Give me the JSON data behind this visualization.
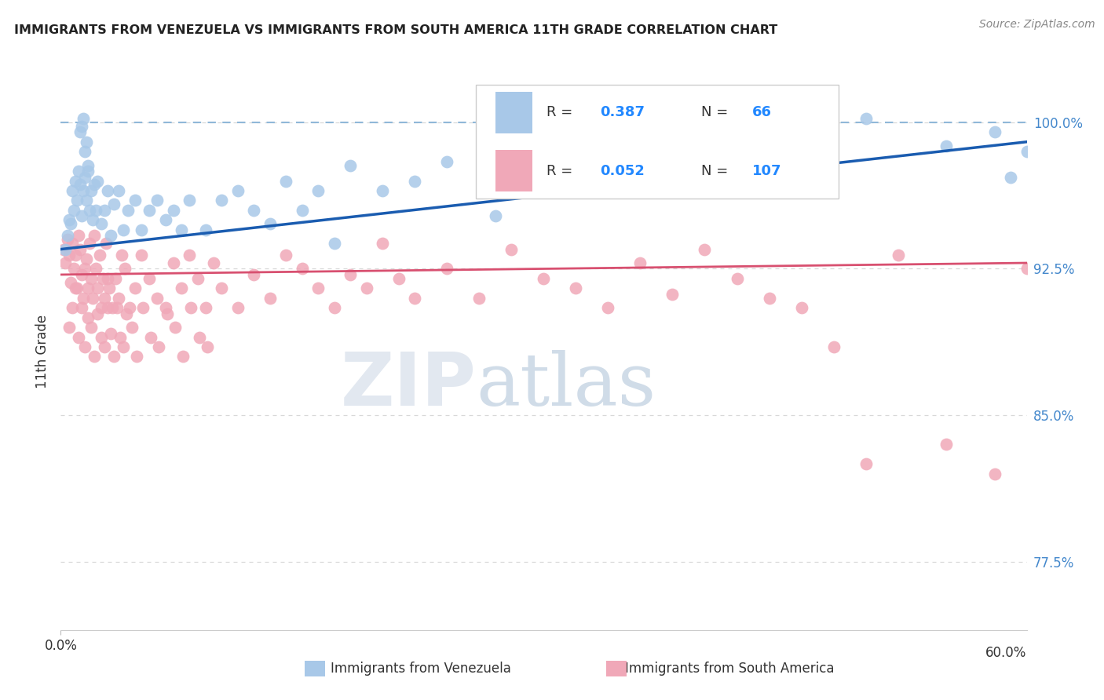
{
  "title": "IMMIGRANTS FROM VENEZUELA VS IMMIGRANTS FROM SOUTH AMERICA 11TH GRADE CORRELATION CHART",
  "source": "Source: ZipAtlas.com",
  "ylabel": "11th Grade",
  "xlim": [
    0.0,
    60.0
  ],
  "ylim": [
    74.0,
    102.5
  ],
  "yticks": [
    77.5,
    85.0,
    92.5,
    100.0
  ],
  "ytick_labels": [
    "77.5%",
    "85.0%",
    "92.5%",
    "100.0%"
  ],
  "blue_color": "#a8c8e8",
  "pink_color": "#f0a8b8",
  "blue_line_color": "#1a5cb0",
  "pink_line_color": "#d85070",
  "dashed_color": "#90b8d8",
  "blue_scatter_x": [
    0.3,
    0.4,
    0.5,
    0.6,
    0.7,
    0.8,
    0.9,
    1.0,
    1.1,
    1.2,
    1.3,
    1.4,
    1.5,
    1.6,
    1.7,
    1.8,
    1.9,
    2.0,
    2.1,
    2.2,
    2.3,
    2.5,
    2.7,
    2.9,
    3.1,
    3.3,
    3.6,
    3.9,
    4.2,
    4.6,
    5.0,
    5.5,
    6.0,
    6.5,
    7.0,
    7.5,
    8.0,
    9.0,
    10.0,
    11.0,
    12.0,
    13.0,
    14.0,
    15.0,
    16.0,
    17.0,
    18.0,
    20.0,
    22.0,
    24.0,
    27.0,
    30.0,
    35.0,
    40.0,
    45.0,
    50.0,
    55.0,
    58.0,
    59.0,
    60.0,
    1.2,
    1.3,
    1.4,
    1.5,
    1.6,
    1.7
  ],
  "blue_scatter_y": [
    93.5,
    94.2,
    95.0,
    94.8,
    96.5,
    95.5,
    97.0,
    96.0,
    97.5,
    96.8,
    95.2,
    96.5,
    97.2,
    96.0,
    97.8,
    95.5,
    96.5,
    95.0,
    96.8,
    95.5,
    97.0,
    94.8,
    95.5,
    96.5,
    94.2,
    95.8,
    96.5,
    94.5,
    95.5,
    96.0,
    94.5,
    95.5,
    96.0,
    95.0,
    95.5,
    94.5,
    96.0,
    94.5,
    96.0,
    96.5,
    95.5,
    94.8,
    97.0,
    95.5,
    96.5,
    93.8,
    97.8,
    96.5,
    97.0,
    98.0,
    95.2,
    97.8,
    99.2,
    99.0,
    97.2,
    100.2,
    98.8,
    99.5,
    97.2,
    98.5,
    99.5,
    99.8,
    100.2,
    98.5,
    99.0,
    97.5
  ],
  "pink_scatter_x": [
    0.2,
    0.3,
    0.4,
    0.5,
    0.6,
    0.7,
    0.8,
    0.9,
    1.0,
    1.1,
    1.2,
    1.3,
    1.4,
    1.5,
    1.6,
    1.7,
    1.8,
    1.9,
    2.0,
    2.1,
    2.2,
    2.3,
    2.4,
    2.5,
    2.6,
    2.7,
    2.8,
    2.9,
    3.0,
    3.2,
    3.4,
    3.6,
    3.8,
    4.0,
    4.3,
    4.6,
    5.0,
    5.5,
    6.0,
    6.5,
    7.0,
    7.5,
    8.0,
    8.5,
    9.0,
    9.5,
    10.0,
    11.0,
    12.0,
    13.0,
    14.0,
    15.0,
    16.0,
    17.0,
    18.0,
    19.0,
    20.0,
    21.0,
    22.0,
    24.0,
    26.0,
    28.0,
    30.0,
    32.0,
    34.0,
    36.0,
    38.0,
    40.0,
    42.0,
    44.0,
    46.0,
    48.0,
    50.0,
    52.0,
    55.0,
    58.0,
    60.0,
    0.5,
    0.7,
    0.9,
    1.1,
    1.3,
    1.5,
    1.7,
    1.9,
    2.1,
    2.3,
    2.5,
    2.7,
    2.9,
    3.1,
    3.3,
    3.5,
    3.7,
    3.9,
    4.1,
    4.4,
    4.7,
    5.1,
    5.6,
    6.1,
    6.6,
    7.1,
    7.6,
    8.1,
    8.6,
    9.1
  ],
  "pink_scatter_y": [
    93.5,
    92.8,
    94.0,
    93.2,
    91.8,
    93.8,
    92.5,
    93.2,
    91.5,
    94.2,
    93.5,
    92.2,
    91.0,
    92.5,
    93.0,
    91.5,
    93.8,
    92.0,
    91.0,
    94.2,
    92.5,
    91.5,
    93.2,
    90.5,
    92.0,
    91.0,
    93.8,
    92.0,
    91.5,
    90.5,
    92.0,
    91.0,
    93.2,
    92.5,
    90.5,
    91.5,
    93.2,
    92.0,
    91.0,
    90.5,
    92.8,
    91.5,
    93.2,
    92.0,
    90.5,
    92.8,
    91.5,
    90.5,
    92.2,
    91.0,
    93.2,
    92.5,
    91.5,
    90.5,
    92.2,
    91.5,
    93.8,
    92.0,
    91.0,
    92.5,
    91.0,
    93.5,
    92.0,
    91.5,
    90.5,
    92.8,
    91.2,
    93.5,
    92.0,
    91.0,
    90.5,
    88.5,
    82.5,
    93.2,
    83.5,
    82.0,
    92.5,
    89.5,
    90.5,
    91.5,
    89.0,
    90.5,
    88.5,
    90.0,
    89.5,
    88.0,
    90.2,
    89.0,
    88.5,
    90.5,
    89.2,
    88.0,
    90.5,
    89.0,
    88.5,
    90.2,
    89.5,
    88.0,
    90.5,
    89.0,
    88.5,
    90.2,
    89.5,
    88.0,
    90.5,
    89.0,
    88.5
  ]
}
